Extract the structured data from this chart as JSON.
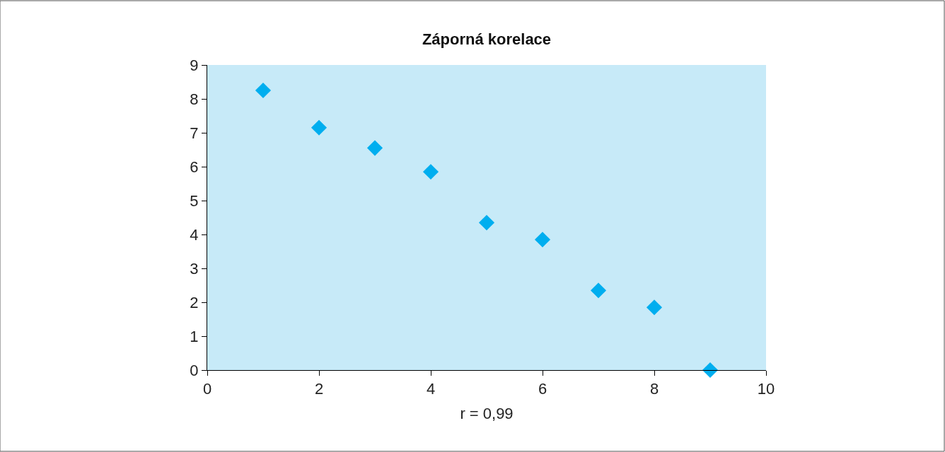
{
  "chart_data": {
    "type": "scatter",
    "title": "Záporná korelace",
    "xlabel": "r = 0,99",
    "x": [
      1,
      2,
      3,
      4,
      5,
      6,
      7,
      8,
      9
    ],
    "values": [
      8.25,
      7.15,
      6.55,
      5.85,
      4.35,
      3.85,
      2.35,
      1.85,
      0
    ],
    "color": "#00aeef",
    "marker": "diamond",
    "xlim": [
      0,
      10
    ],
    "xticks": [
      0,
      2,
      4,
      6,
      8,
      10
    ],
    "ylim": [
      0,
      9
    ],
    "yticks": [
      0,
      1,
      2,
      3,
      4,
      5,
      6,
      7,
      8,
      9
    ],
    "grid": false
  }
}
